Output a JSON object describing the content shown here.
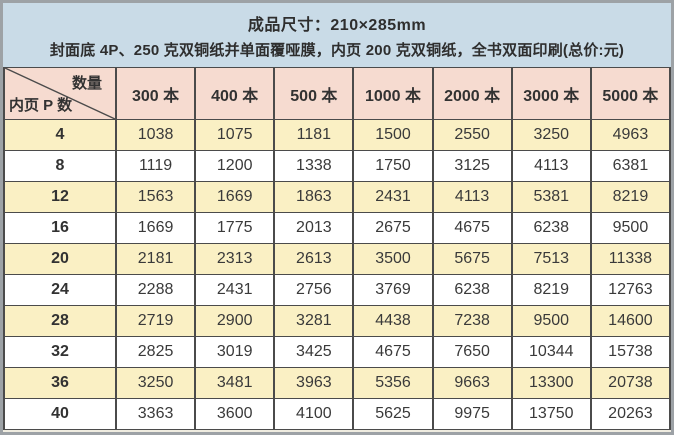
{
  "chart_data": {
    "type": "table",
    "title": "成品尺寸：210×285mm",
    "subtitle": "封面底 4P、250 克双铜纸并单面覆哑膜，内页 200 克双铜纸，全书双面印刷(总价:元)",
    "corner": {
      "top_right": "数量",
      "bottom_left": "内页 P 数"
    },
    "columns": [
      "300 本",
      "400 本",
      "500 本",
      "1000 本",
      "2000 本",
      "3000 本",
      "5000 本"
    ],
    "rows": [
      {
        "pages": "4",
        "prices": [
          "1038",
          "1075",
          "1181",
          "1500",
          "2550",
          "3250",
          "4963"
        ]
      },
      {
        "pages": "8",
        "prices": [
          "1119",
          "1200",
          "1338",
          "1750",
          "3125",
          "4113",
          "6381"
        ]
      },
      {
        "pages": "12",
        "prices": [
          "1563",
          "1669",
          "1863",
          "2431",
          "4113",
          "5381",
          "8219"
        ]
      },
      {
        "pages": "16",
        "prices": [
          "1669",
          "1775",
          "2013",
          "2675",
          "4675",
          "6238",
          "9500"
        ]
      },
      {
        "pages": "20",
        "prices": [
          "2181",
          "2313",
          "2613",
          "3500",
          "5675",
          "7513",
          "11338"
        ]
      },
      {
        "pages": "24",
        "prices": [
          "2288",
          "2431",
          "2756",
          "3769",
          "6238",
          "8219",
          "12763"
        ]
      },
      {
        "pages": "28",
        "prices": [
          "2719",
          "2900",
          "3281",
          "4438",
          "7238",
          "9500",
          "14600"
        ]
      },
      {
        "pages": "32",
        "prices": [
          "2825",
          "3019",
          "3425",
          "4675",
          "7650",
          "10344",
          "15738"
        ]
      },
      {
        "pages": "36",
        "prices": [
          "3250",
          "3481",
          "3963",
          "5356",
          "9663",
          "13300",
          "20738"
        ]
      },
      {
        "pages": "40",
        "prices": [
          "3363",
          "3600",
          "4100",
          "5625",
          "9975",
          "13750",
          "20263"
        ]
      }
    ]
  },
  "colors": {
    "band_bg": "#c9dbe7",
    "header_bg": "#f6dbd0",
    "row_alt_bg": "#faf0c4",
    "row_bg": "#ffffff",
    "grid_line": "#4b4b4b",
    "frame": "#9da2a6",
    "text": "#323232"
  }
}
